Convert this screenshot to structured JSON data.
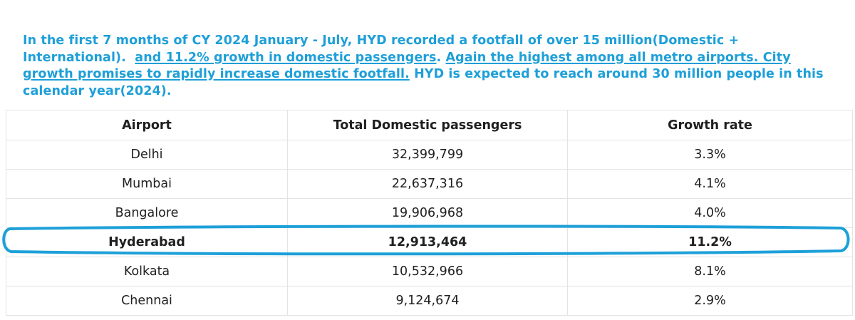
{
  "intro": {
    "part1": "In the first 7 months of CY 2024 January - July, HYD recorded a footfall of over 15 million(Domestic + International).",
    "part2": "and 11.2% growth in domestic passengers",
    "part3": ".",
    "part4": "Again the highest among all metro airports. City growth promises to rapidly increase domestic footfall.",
    "part5": "HYD is expected to reach around 30 million people in this calendar year(2024)."
  },
  "table": {
    "headers": {
      "airport": "Airport",
      "passengers": "Total Domestic passengers",
      "growth": "Growth rate"
    },
    "rows": [
      {
        "airport": "Delhi",
        "passengers": "32,399,799",
        "growth": "3.3%"
      },
      {
        "airport": "Mumbai",
        "passengers": "22,637,316",
        "growth": "4.1%"
      },
      {
        "airport": "Bangalore",
        "passengers": "19,906,968",
        "growth": "4.0%"
      },
      {
        "airport": "Hyderabad",
        "passengers": "12,913,464",
        "growth": "11.2%"
      },
      {
        "airport": "Kolkata",
        "passengers": "10,532,966",
        "growth": "8.1%"
      },
      {
        "airport": "Chennai",
        "passengers": "9,124,674",
        "growth": "2.9%"
      }
    ]
  },
  "colors": {
    "accent": "#1e9fd8",
    "highlight_oval": "#1ea0d8"
  }
}
